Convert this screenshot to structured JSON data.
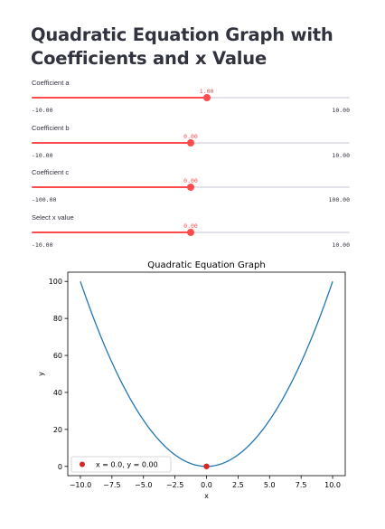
{
  "page": {
    "title": "Quadratic Equation Graph with Coefficients and x Value"
  },
  "sliders": [
    {
      "label": "Coefficient a",
      "value": 1.0,
      "value_text": "1.00",
      "min": -10,
      "max": 10,
      "min_text": "-10.00",
      "max_text": "10.00"
    },
    {
      "label": "Coefficient b",
      "value": 0.0,
      "value_text": "0.00",
      "min": -10,
      "max": 10,
      "min_text": "-10.00",
      "max_text": "10.00"
    },
    {
      "label": "Coefficient c",
      "value": 0.0,
      "value_text": "0.00",
      "min": -100,
      "max": 100,
      "min_text": "-100.00",
      "max_text": "100.00"
    },
    {
      "label": "Select x value",
      "value": 0.0,
      "value_text": "0.00",
      "min": -10,
      "max": 10,
      "min_text": "-10.00",
      "max_text": "10.00"
    }
  ],
  "colors": {
    "accent": "#ff4b4b",
    "track": "#e2e3e8",
    "line": "#1f77b4",
    "point": "#d62728"
  },
  "chart_data": {
    "type": "line",
    "title": "Quadratic Equation Graph",
    "xlabel": "x",
    "ylabel": "y",
    "xlim": [
      -11,
      11
    ],
    "ylim": [
      -5,
      105
    ],
    "xticks": [
      -10,
      -7.5,
      -5,
      -2.5,
      0,
      2.5,
      5,
      7.5,
      10
    ],
    "xtick_labels": [
      "−10.0",
      "−7.5",
      "−5.0",
      "−2.5",
      "0.0",
      "2.5",
      "5.0",
      "7.5",
      "10.0"
    ],
    "yticks": [
      0,
      20,
      40,
      60,
      80,
      100
    ],
    "ytick_labels": [
      "0",
      "20",
      "40",
      "60",
      "80",
      "100"
    ],
    "grid": false,
    "legend_placement": "lower-left",
    "series": [
      {
        "kind": "line",
        "equation": "y = x^2",
        "a": 1,
        "b": 0,
        "c": 0,
        "x_range": [
          -10,
          10
        ]
      },
      {
        "kind": "point",
        "name": "x = 0.0, y = 0.00",
        "x": 0,
        "y": 0
      }
    ]
  }
}
